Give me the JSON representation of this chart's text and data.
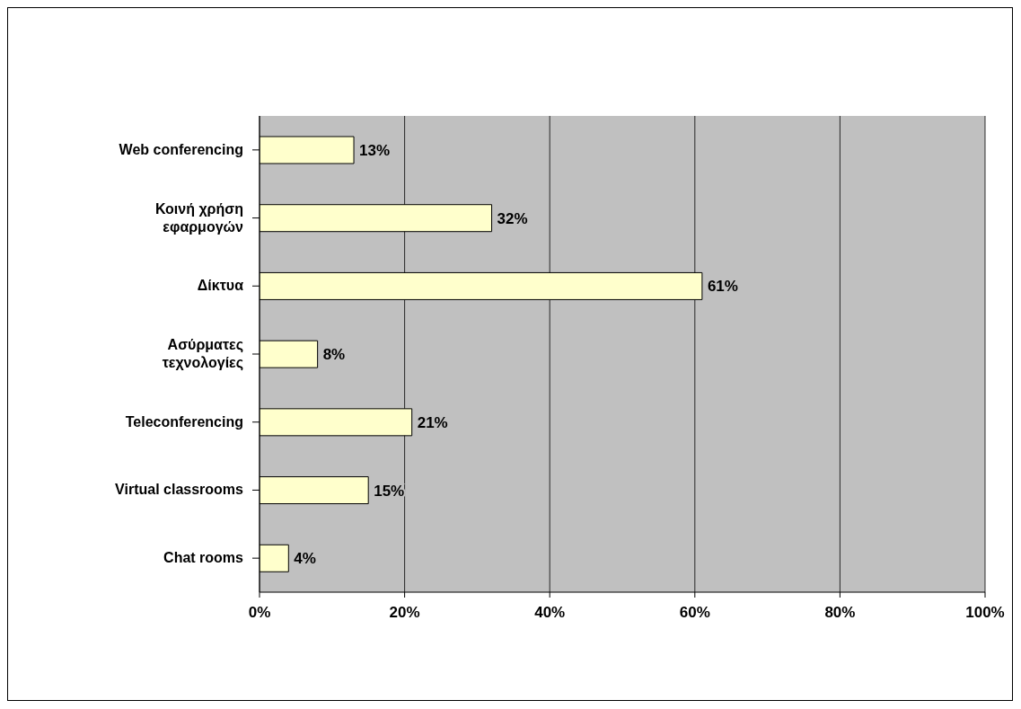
{
  "chart_data": {
    "type": "bar",
    "orientation": "horizontal",
    "categories": [
      "Web conferencing",
      "Κοινή χρήση εφαρμογών",
      "Δίκτυα",
      "Ασύρματες τεχνολογίες",
      "Teleconferencing",
      "Virtual classrooms",
      "Chat rooms"
    ],
    "values": [
      13,
      32,
      61,
      8,
      21,
      15,
      4
    ],
    "value_labels": [
      "13%",
      "32%",
      "61%",
      "8%",
      "21%",
      "15%",
      "4%"
    ],
    "color": "#ffffcc",
    "xlim": [
      0,
      100
    ],
    "xticks": [
      {
        "value": 0,
        "label": "0%"
      },
      {
        "value": 20,
        "label": "20%"
      },
      {
        "value": 40,
        "label": "40%"
      },
      {
        "value": 60,
        "label": "60%"
      },
      {
        "value": 80,
        "label": "80%"
      },
      {
        "value": 100,
        "label": "100%"
      }
    ],
    "grid": "x",
    "legend": false
  }
}
